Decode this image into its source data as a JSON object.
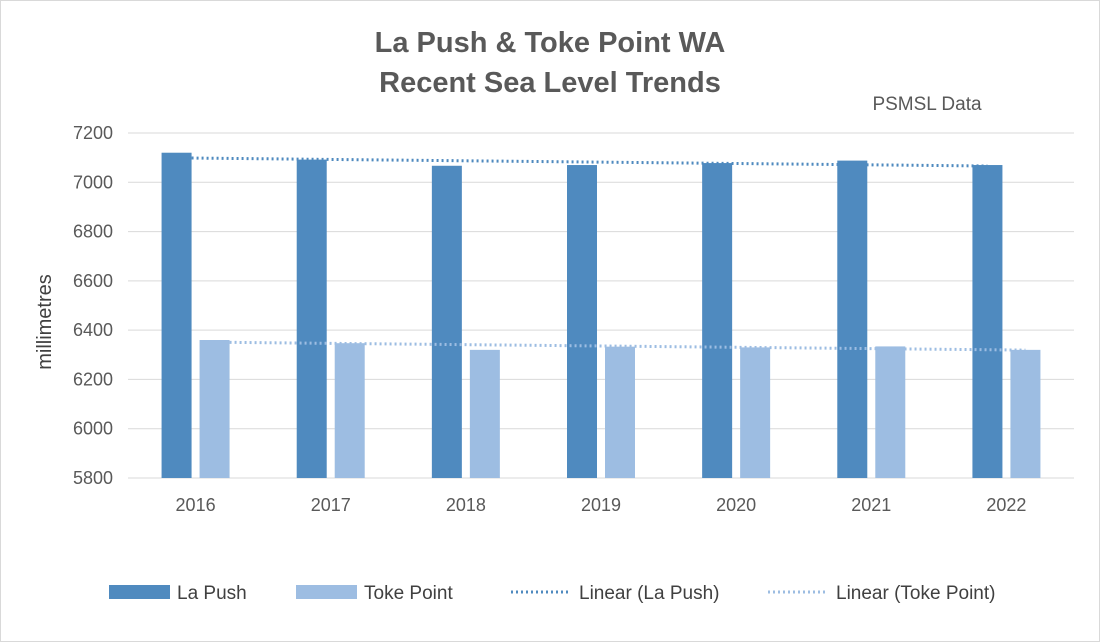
{
  "chart_data": {
    "type": "bar",
    "title_lines": [
      "La Push & Toke Point WA",
      "Recent Sea Level Trends"
    ],
    "annotation": "PSMSL Data",
    "categories": [
      "2016",
      "2017",
      "2018",
      "2019",
      "2020",
      "2021",
      "2022"
    ],
    "series": [
      {
        "name": "La Push",
        "values": [
          7120,
          7092,
          7067,
          7070,
          7078,
          7088,
          7070
        ],
        "color": "#4f8abf"
      },
      {
        "name": "Toke Point",
        "values": [
          6360,
          6347,
          6320,
          6333,
          6330,
          6334,
          6320
        ],
        "color": "#9dbde2"
      }
    ],
    "trendlines": [
      {
        "name": "Linear (La Push)",
        "of": "La Push",
        "start": 7099,
        "end": 7066,
        "color": "#4f8abf"
      },
      {
        "name": "Linear (Toke Point)",
        "of": "Toke Point",
        "start": 6351,
        "end": 6319,
        "color": "#9dbde2"
      }
    ],
    "xlabel": "",
    "ylabel": "millimetres",
    "ylim": [
      5800,
      7200
    ],
    "yticks": [
      5800,
      6000,
      6200,
      6400,
      6600,
      6800,
      7000,
      7200
    ],
    "grid": true,
    "legend_position": "bottom"
  }
}
